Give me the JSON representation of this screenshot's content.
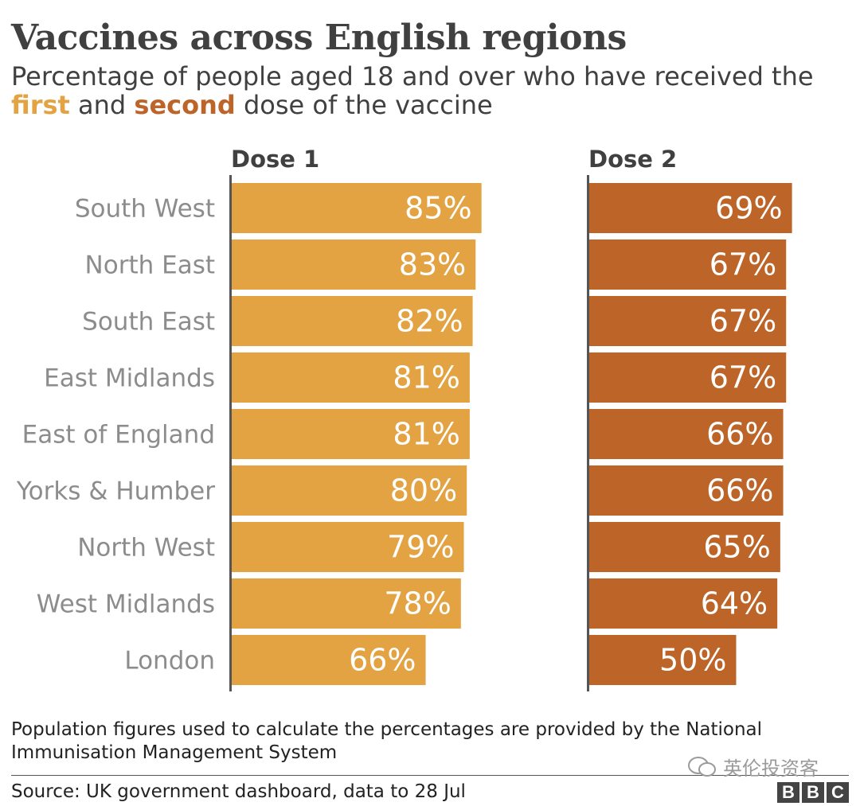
{
  "title": "Vaccines across English regions",
  "subtitle": {
    "text1": "Percentage of people aged 18 and over who have received the ",
    "first": "first",
    "text2": " and ",
    "second": "second",
    "text3": " dose of the vaccine"
  },
  "chart_data": {
    "type": "bar",
    "orientation": "horizontal",
    "title": "Vaccines across English regions",
    "subtitle": "Percentage of people aged 18 and over who have received the first and second dose of the vaccine",
    "categories": [
      "South West",
      "North East",
      "South East",
      "East Midlands",
      "East of England",
      "Yorks & Humber",
      "North West",
      "West Midlands",
      "London"
    ],
    "series": [
      {
        "name": "Dose 1",
        "color": "#e3a343",
        "values": [
          85,
          83,
          82,
          81,
          81,
          80,
          79,
          78,
          66
        ]
      },
      {
        "name": "Dose 2",
        "color": "#bd6528",
        "values": [
          69,
          67,
          67,
          67,
          66,
          66,
          65,
          64,
          50
        ]
      }
    ],
    "value_suffix": "%",
    "xlim": [
      0,
      100
    ],
    "grid": false,
    "legend": "none",
    "label_color": "#8c8c8c",
    "axis_color": "#555555"
  },
  "footer": {
    "note": "Population figures used to calculate the percentages are provided by the National Immunisation Management System",
    "source": "Source: UK government dashboard, data to 28 Jul",
    "logo": [
      "B",
      "B",
      "C"
    ],
    "watermark": "英伦投资客"
  }
}
